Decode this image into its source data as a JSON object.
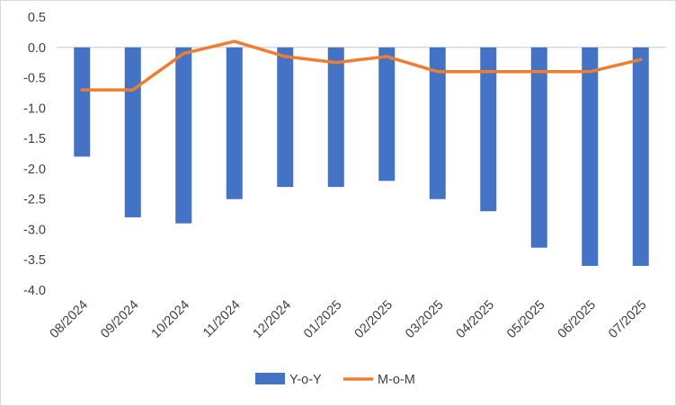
{
  "chart_data": {
    "type": "bar",
    "combo": true,
    "title": "",
    "xlabel": "",
    "ylabel": "",
    "categories": [
      "08/2024",
      "09/2024",
      "10/2024",
      "11/2024",
      "12/2024",
      "01/2025",
      "02/2025",
      "03/2025",
      "04/2025",
      "05/2025",
      "06/2025",
      "07/2025"
    ],
    "series": [
      {
        "name": "Y-o-Y",
        "type": "bar",
        "color": "#4472C4",
        "values": [
          -1.8,
          -2.8,
          -2.9,
          -2.5,
          -2.3,
          -2.3,
          -2.2,
          -2.5,
          -2.7,
          -3.3,
          -3.6,
          -3.6
        ]
      },
      {
        "name": "M-o-M",
        "type": "line",
        "color": "#ED7D31",
        "values": [
          -0.7,
          -0.7,
          -0.1,
          0.1,
          -0.15,
          -0.25,
          -0.15,
          -0.4,
          -0.4,
          -0.4,
          -0.4,
          -0.2
        ]
      }
    ],
    "ylim": [
      -4.0,
      0.5
    ],
    "ytick_labels": [
      "0.5",
      "0.0",
      "-0.5",
      "-1.0",
      "-1.5",
      "-2.0",
      "-2.5",
      "-3.0",
      "-3.5",
      "-4.0"
    ],
    "grid": "zero-line-only",
    "legend_position": "bottom"
  },
  "style": {
    "axis_text_color": "#404040",
    "zero_line_color": "#c9c9c9",
    "bar_color": "#4472C4",
    "line_color": "#ED7D31"
  }
}
